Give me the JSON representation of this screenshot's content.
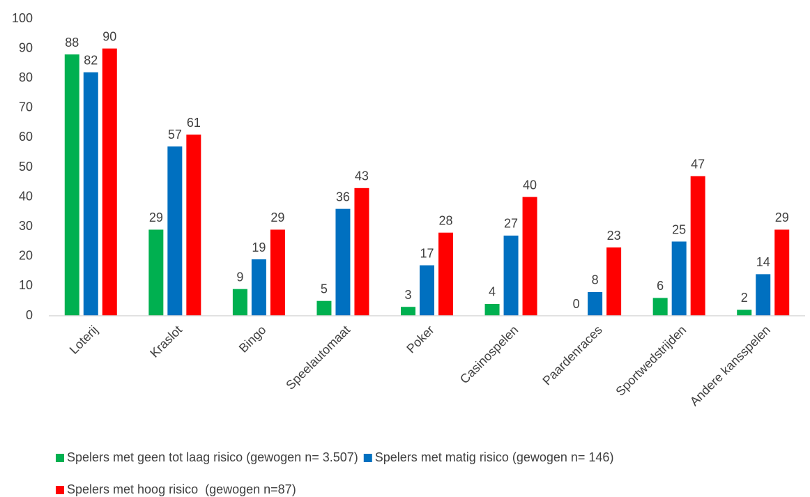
{
  "chart_data": {
    "type": "bar",
    "categories": [
      "Loterij",
      "Kraslot",
      "Bingo",
      "Speelautomaat",
      "Poker",
      "Casinospelen",
      "Paardenraces",
      "Sportwedstrijden",
      "Andere kansspelen"
    ],
    "series": [
      {
        "name": "Spelers met geen tot laag risico (gewogen n= 3.507)",
        "color": "#00b050",
        "values": [
          88,
          29,
          9,
          5,
          3,
          4,
          0,
          6,
          2
        ]
      },
      {
        "name": "Spelers met matig risico (gewogen n= 146)",
        "color": "#0070c0",
        "values": [
          82,
          57,
          19,
          36,
          17,
          27,
          8,
          25,
          14
        ]
      },
      {
        "name": "Spelers met hoog risico  (gewogen n=87)",
        "color": "#ff0000",
        "values": [
          90,
          61,
          29,
          43,
          28,
          40,
          23,
          47,
          29
        ]
      }
    ],
    "ylim": [
      0,
      100
    ],
    "yticks": [
      0,
      10,
      20,
      30,
      40,
      50,
      60,
      70,
      80,
      90,
      100
    ],
    "grid": false
  }
}
